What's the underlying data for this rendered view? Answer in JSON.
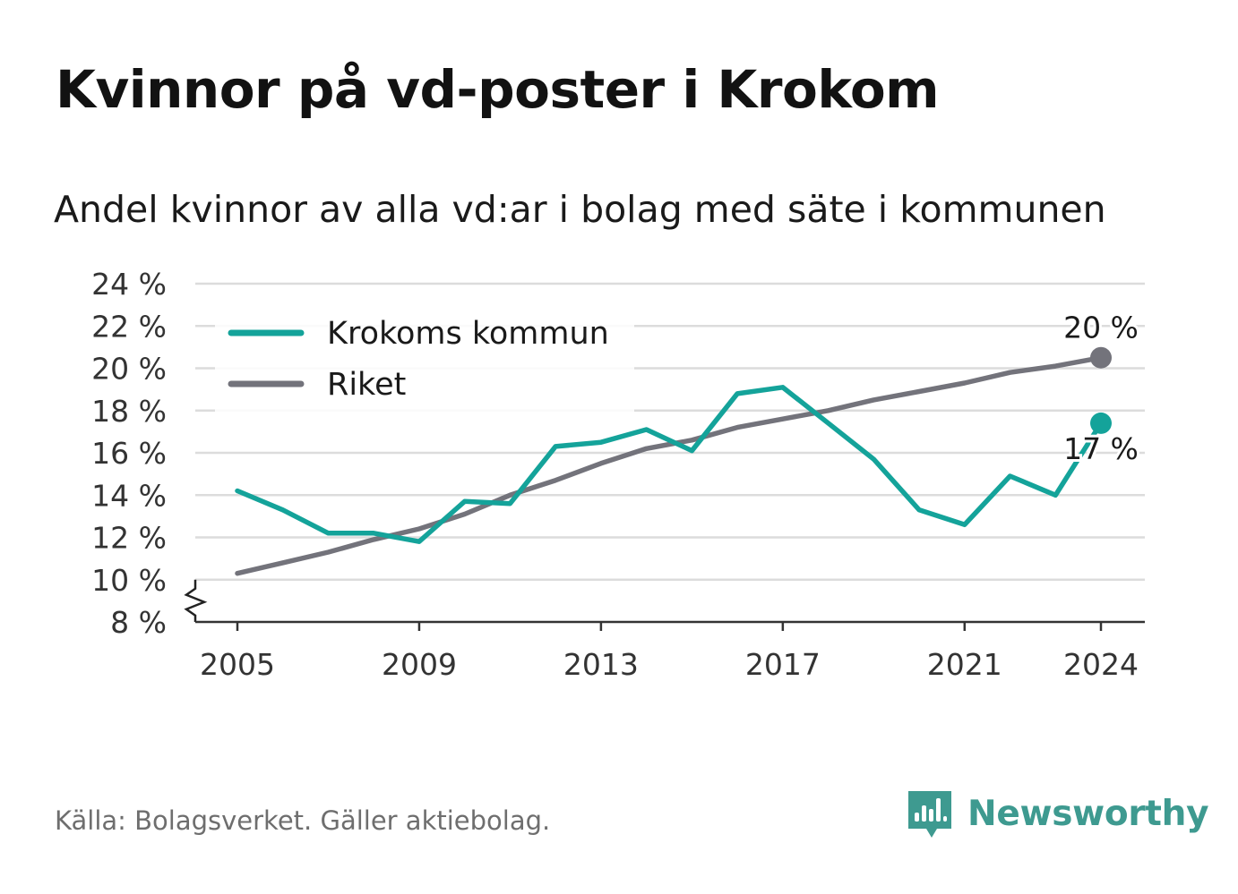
{
  "title": "Kvinnor på vd-poster i Krokom",
  "subtitle": "Andel kvinnor av alla vd:ar i bolag med säte i kommunen",
  "source": "Källa: Bolagsverket. Gäller aktiebolag.",
  "brand": {
    "name": "Newsworthy",
    "icon": "newsworthy-logo-icon",
    "color": "#3e9a90"
  },
  "chart_data": {
    "type": "line",
    "title": "Kvinnor på vd-poster i Krokom",
    "xlabel": "",
    "ylabel": "",
    "x": [
      2005,
      2006,
      2007,
      2008,
      2009,
      2010,
      2011,
      2012,
      2013,
      2014,
      2015,
      2016,
      2017,
      2018,
      2019,
      2020,
      2021,
      2022,
      2023,
      2024
    ],
    "xticks": [
      "2005",
      "2009",
      "2013",
      "2017",
      "2021",
      "2024"
    ],
    "ylim": [
      8,
      24
    ],
    "yticks": [
      "8 %",
      "10 %",
      "12 %",
      "14 %",
      "16 %",
      "18 %",
      "20 %",
      "22 %",
      "24 %"
    ],
    "axis_break": true,
    "grid": true,
    "legend_position": "top-left",
    "series": [
      {
        "name": "Krokoms kommun",
        "color": "#14a39a",
        "values": [
          14.2,
          13.3,
          12.2,
          12.2,
          11.8,
          13.7,
          13.6,
          16.3,
          16.5,
          17.1,
          16.1,
          18.8,
          19.1,
          17.4,
          15.7,
          13.3,
          12.6,
          14.9,
          14.0,
          17.4
        ],
        "end_label": "17 %"
      },
      {
        "name": "Riket",
        "color": "#73737b",
        "values": [
          10.3,
          10.8,
          11.3,
          11.9,
          12.4,
          13.1,
          14.0,
          14.7,
          15.5,
          16.2,
          16.6,
          17.2,
          17.6,
          18.0,
          18.5,
          18.9,
          19.3,
          19.8,
          20.1,
          20.5
        ],
        "end_label": "20 %"
      }
    ]
  }
}
